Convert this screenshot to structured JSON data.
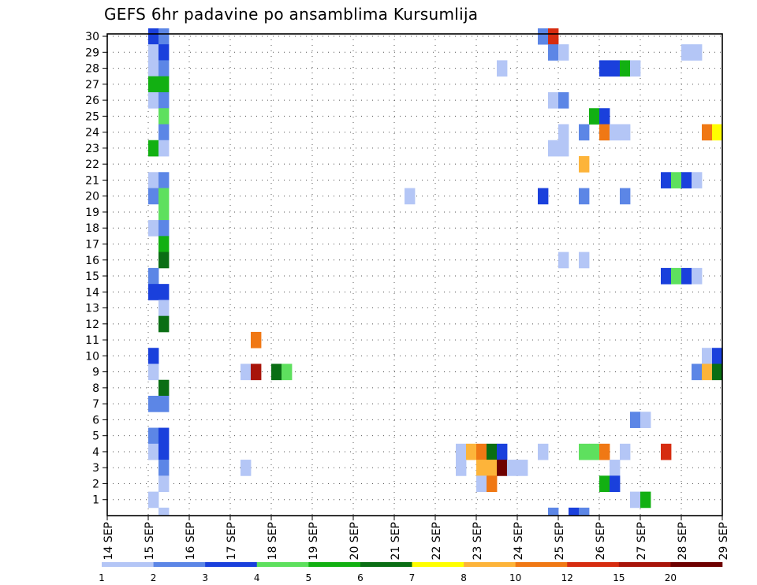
{
  "chart_data": {
    "type": "heatmap",
    "title": "GEFS 6hr padavine po ansamblima Kursumlija",
    "xlabel": "",
    "ylabel": "",
    "x_ticks": [
      "14 SEP",
      "15 SEP",
      "16 SEP",
      "17 SEP",
      "18 SEP",
      "19 SEP",
      "20 SEP",
      "21 SEP",
      "22 SEP",
      "23 SEP",
      "24 SEP",
      "25 SEP",
      "26 SEP",
      "27 SEP",
      "28 SEP",
      "29 SEP"
    ],
    "y_ticks": [
      "1",
      "2",
      "3",
      "4",
      "5",
      "6",
      "7",
      "8",
      "9",
      "10",
      "11",
      "12",
      "13",
      "14",
      "15",
      "16",
      "17",
      "18",
      "19",
      "20",
      "21",
      "22",
      "23",
      "24",
      "25",
      "26",
      "27",
      "28",
      "29",
      "30"
    ],
    "xlim_days": [
      0,
      15
    ],
    "ylim": [
      0,
      30
    ],
    "time_step_hours": 6,
    "grid": true,
    "legend": {
      "position": "bottom",
      "labels": [
        "1",
        "2",
        "3",
        "4",
        "5",
        "6",
        "7",
        "8",
        "10",
        "12",
        "15",
        "20"
      ],
      "colors": [
        "#b4c6f6",
        "#5c86e6",
        "#1a40dc",
        "#5ee05e",
        "#12b012",
        "#0a6e14",
        "#ffff00",
        "#fdb43a",
        "#f07814",
        "#d62c10",
        "#a8140a",
        "#6e0000"
      ]
    },
    "cells": [
      {
        "member": 30,
        "day": 1.0,
        "class": 3
      },
      {
        "member": 30,
        "day": 1.25,
        "class": 2
      },
      {
        "member": 29,
        "day": 1.0,
        "class": 1
      },
      {
        "member": 29,
        "day": 1.25,
        "class": 3
      },
      {
        "member": 28,
        "day": 1.0,
        "class": 1
      },
      {
        "member": 28,
        "day": 1.25,
        "class": 2
      },
      {
        "member": 27,
        "day": 1.0,
        "class": 5
      },
      {
        "member": 27,
        "day": 1.25,
        "class": 5
      },
      {
        "member": 26,
        "day": 1.0,
        "class": 1
      },
      {
        "member": 26,
        "day": 1.25,
        "class": 2
      },
      {
        "member": 25,
        "day": 1.25,
        "class": 4
      },
      {
        "member": 24,
        "day": 1.25,
        "class": 2
      },
      {
        "member": 23,
        "day": 1.0,
        "class": 5
      },
      {
        "member": 23,
        "day": 1.25,
        "class": 1
      },
      {
        "member": 21,
        "day": 1.0,
        "class": 1
      },
      {
        "member": 21,
        "day": 1.25,
        "class": 2
      },
      {
        "member": 20,
        "day": 1.0,
        "class": 2
      },
      {
        "member": 20,
        "day": 1.25,
        "class": 4
      },
      {
        "member": 19,
        "day": 1.25,
        "class": 4
      },
      {
        "member": 18,
        "day": 1.0,
        "class": 1
      },
      {
        "member": 18,
        "day": 1.25,
        "class": 2
      },
      {
        "member": 17,
        "day": 1.25,
        "class": 5
      },
      {
        "member": 16,
        "day": 1.25,
        "class": 6
      },
      {
        "member": 15,
        "day": 1.0,
        "class": 2
      },
      {
        "member": 14,
        "day": 1.0,
        "class": 3
      },
      {
        "member": 14,
        "day": 1.25,
        "class": 3
      },
      {
        "member": 13,
        "day": 1.25,
        "class": 1
      },
      {
        "member": 12,
        "day": 1.25,
        "class": 6
      },
      {
        "member": 10,
        "day": 1.0,
        "class": 3
      },
      {
        "member": 9,
        "day": 1.0,
        "class": 1
      },
      {
        "member": 8,
        "day": 1.25,
        "class": 6
      },
      {
        "member": 7,
        "day": 1.0,
        "class": 2
      },
      {
        "member": 7,
        "day": 1.25,
        "class": 2
      },
      {
        "member": 5,
        "day": 1.0,
        "class": 2
      },
      {
        "member": 5,
        "day": 1.25,
        "class": 3
      },
      {
        "member": 4,
        "day": 1.0,
        "class": 1
      },
      {
        "member": 4,
        "day": 1.25,
        "class": 3
      },
      {
        "member": 3,
        "day": 1.25,
        "class": 2
      },
      {
        "member": 2,
        "day": 1.25,
        "class": 1
      },
      {
        "member": 1,
        "day": 1.0,
        "class": 1
      },
      {
        "member": 0,
        "day": 1.25,
        "class": 1
      },
      {
        "member": 9,
        "day": 3.25,
        "class": 1
      },
      {
        "member": 9,
        "day": 3.5,
        "class": 11
      },
      {
        "member": 11,
        "day": 3.5,
        "class": 9
      },
      {
        "member": 9,
        "day": 4.0,
        "class": 6
      },
      {
        "member": 9,
        "day": 4.25,
        "class": 4
      },
      {
        "member": 3,
        "day": 3.25,
        "class": 1
      },
      {
        "member": 20,
        "day": 7.25,
        "class": 1
      },
      {
        "member": 4,
        "day": 8.5,
        "class": 1
      },
      {
        "member": 4,
        "day": 8.75,
        "class": 8
      },
      {
        "member": 4,
        "day": 9.0,
        "class": 9
      },
      {
        "member": 4,
        "day": 9.25,
        "class": 6
      },
      {
        "member": 4,
        "day": 9.5,
        "class": 3
      },
      {
        "member": 3,
        "day": 8.5,
        "class": 1
      },
      {
        "member": 3,
        "day": 9.0,
        "class": 8
      },
      {
        "member": 3,
        "day": 9.25,
        "class": 8
      },
      {
        "member": 3,
        "day": 9.5,
        "class": 12
      },
      {
        "member": 3,
        "day": 9.75,
        "class": 1
      },
      {
        "member": 3,
        "day": 10.0,
        "class": 1
      },
      {
        "member": 2,
        "day": 9.0,
        "class": 1
      },
      {
        "member": 2,
        "day": 9.25,
        "class": 9
      },
      {
        "member": 28,
        "day": 9.5,
        "class": 1
      },
      {
        "member": 4,
        "day": 10.5,
        "class": 1
      },
      {
        "member": 30,
        "day": 10.5,
        "class": 2
      },
      {
        "member": 30,
        "day": 10.75,
        "class": 10
      },
      {
        "member": 29,
        "day": 10.75,
        "class": 2
      },
      {
        "member": 29,
        "day": 11.0,
        "class": 1
      },
      {
        "member": 26,
        "day": 10.75,
        "class": 1
      },
      {
        "member": 26,
        "day": 11.0,
        "class": 2
      },
      {
        "member": 24,
        "day": 11.0,
        "class": 1
      },
      {
        "member": 23,
        "day": 10.75,
        "class": 1
      },
      {
        "member": 23,
        "day": 11.0,
        "class": 1
      },
      {
        "member": 20,
        "day": 10.5,
        "class": 3
      },
      {
        "member": 16,
        "day": 11.0,
        "class": 1
      },
      {
        "member": 0,
        "day": 10.75,
        "class": 2
      },
      {
        "member": 0,
        "day": 11.25,
        "class": 3
      },
      {
        "member": 0,
        "day": 11.5,
        "class": 2
      },
      {
        "member": 24,
        "day": 11.5,
        "class": 2
      },
      {
        "member": 22,
        "day": 11.5,
        "class": 8
      },
      {
        "member": 20,
        "day": 11.5,
        "class": 2
      },
      {
        "member": 16,
        "day": 11.5,
        "class": 1
      },
      {
        "member": 4,
        "day": 11.5,
        "class": 4
      },
      {
        "member": 4,
        "day": 11.75,
        "class": 4
      },
      {
        "member": 4,
        "day": 12.0,
        "class": 9
      },
      {
        "member": 28,
        "day": 12.0,
        "class": 3
      },
      {
        "member": 28,
        "day": 12.25,
        "class": 3
      },
      {
        "member": 28,
        "day": 12.5,
        "class": 5
      },
      {
        "member": 28,
        "day": 12.75,
        "class": 1
      },
      {
        "member": 25,
        "day": 11.75,
        "class": 5
      },
      {
        "member": 25,
        "day": 12.0,
        "class": 3
      },
      {
        "member": 24,
        "day": 12.0,
        "class": 9
      },
      {
        "member": 24,
        "day": 12.25,
        "class": 1
      },
      {
        "member": 24,
        "day": 12.5,
        "class": 1
      },
      {
        "member": 3,
        "day": 12.25,
        "class": 1
      },
      {
        "member": 2,
        "day": 12.0,
        "class": 5
      },
      {
        "member": 2,
        "day": 12.25,
        "class": 3
      },
      {
        "member": 20,
        "day": 12.5,
        "class": 2
      },
      {
        "member": 4,
        "day": 12.5,
        "class": 1
      },
      {
        "member": 6,
        "day": 12.75,
        "class": 2
      },
      {
        "member": 6,
        "day": 13.0,
        "class": 1
      },
      {
        "member": 1,
        "day": 12.75,
        "class": 1
      },
      {
        "member": 1,
        "day": 13.0,
        "class": 5
      },
      {
        "member": 4,
        "day": 13.5,
        "class": 10
      },
      {
        "member": 21,
        "day": 13.5,
        "class": 3
      },
      {
        "member": 21,
        "day": 13.75,
        "class": 4
      },
      {
        "member": 21,
        "day": 14.0,
        "class": 3
      },
      {
        "member": 21,
        "day": 14.25,
        "class": 1
      },
      {
        "member": 15,
        "day": 13.5,
        "class": 3
      },
      {
        "member": 15,
        "day": 13.75,
        "class": 4
      },
      {
        "member": 15,
        "day": 14.0,
        "class": 3
      },
      {
        "member": 15,
        "day": 14.25,
        "class": 1
      },
      {
        "member": 29,
        "day": 14.0,
        "class": 1
      },
      {
        "member": 29,
        "day": 14.25,
        "class": 1
      },
      {
        "member": 24,
        "day": 14.5,
        "class": 9
      },
      {
        "member": 24,
        "day": 14.75,
        "class": 7
      },
      {
        "member": 10,
        "day": 14.5,
        "class": 1
      },
      {
        "member": 10,
        "day": 14.75,
        "class": 3
      },
      {
        "member": 9,
        "day": 14.25,
        "class": 2
      },
      {
        "member": 9,
        "day": 14.5,
        "class": 8
      },
      {
        "member": 9,
        "day": 14.75,
        "class": 6
      }
    ]
  }
}
